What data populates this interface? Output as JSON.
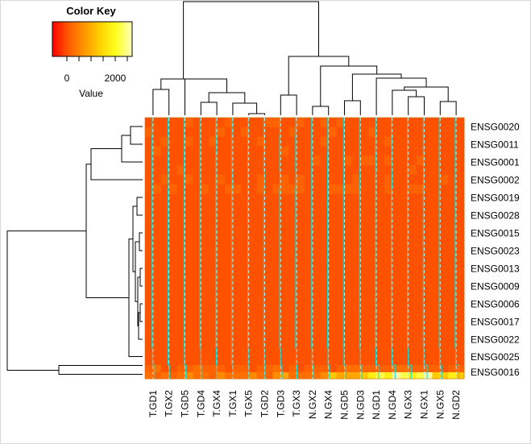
{
  "chart_data": {
    "type": "heatmap",
    "color_key": {
      "title": "Color Key",
      "xlabel": "Value",
      "tick_labels": [
        "0",
        "2000"
      ],
      "tick_values": [
        0,
        2000
      ],
      "range": [
        -600,
        2700
      ],
      "colors": [
        "#ff0000",
        "#ff5a00",
        "#ff9600",
        "#ffd200",
        "#ffff20",
        "#ffffc0"
      ]
    },
    "columns": [
      "T.GD1",
      "T.GX2",
      "T.GD5",
      "T.GD4",
      "T.GX4",
      "T.GX1",
      "T.GX5",
      "T.GD2",
      "T.GD3",
      "T.GX3",
      "N.GX2",
      "N.GX4",
      "N.GD5",
      "N.GD3",
      "N.GD1",
      "N.GD4",
      "N.GX3",
      "N.GX1",
      "N.GX5",
      "N.GD2"
    ],
    "rows": [
      "ENSG0020",
      "ENSG0011",
      "ENSG0001",
      "ENSG0002",
      "ENSG0019",
      "ENSG0028",
      "ENSG0015",
      "ENSG0023",
      "ENSG0013",
      "ENSG0009",
      "ENSG0006",
      "ENSG0017",
      "ENSG0022",
      "ENSG0025",
      "ENSG0016"
    ],
    "value_levels": [
      0,
      150,
      300,
      600,
      900,
      1300,
      1800,
      2200,
      2600
    ],
    "level_grid": [
      [
        0,
        0,
        0,
        0,
        0,
        1,
        0,
        0,
        0,
        0,
        1,
        0,
        0,
        0,
        0,
        1,
        1,
        0,
        0,
        1,
        0,
        0,
        1,
        0,
        1,
        0,
        0,
        0,
        0,
        0,
        0,
        0,
        0,
        0,
        0,
        0,
        0,
        0,
        0,
        0
      ],
      [
        1,
        0,
        0,
        0,
        0,
        0,
        0,
        0,
        0,
        1,
        0,
        0,
        1,
        0,
        0,
        0,
        0,
        0,
        1,
        0,
        0,
        0,
        0,
        1,
        0,
        0,
        0,
        0,
        1,
        0,
        0,
        0,
        0,
        0,
        0,
        0,
        0,
        0,
        0,
        0
      ],
      [
        0,
        0,
        1,
        0,
        0,
        1,
        0,
        0,
        1,
        0,
        0,
        0,
        0,
        0,
        1,
        0,
        0,
        0,
        0,
        0,
        0,
        0,
        1,
        0,
        0,
        0,
        0,
        0,
        0,
        0,
        1,
        0,
        0,
        0,
        0,
        0,
        0,
        0,
        0,
        0
      ],
      [
        0,
        1,
        0,
        0,
        0,
        0,
        0,
        0,
        0,
        0,
        0,
        0,
        0,
        0,
        0,
        0,
        0,
        1,
        0,
        0,
        0,
        0,
        0,
        0,
        0,
        0,
        0,
        0,
        0,
        0,
        0,
        0,
        0,
        0,
        0,
        0,
        0,
        0,
        0,
        0
      ],
      [
        0,
        0,
        0,
        0,
        0,
        0,
        0,
        0,
        0,
        0,
        0,
        0,
        0,
        0,
        0,
        0,
        0,
        0,
        0,
        0,
        0,
        1,
        0,
        0,
        0,
        1,
        0,
        1,
        1,
        0,
        1,
        0,
        0,
        0,
        1,
        0,
        0,
        0,
        0,
        0
      ],
      [
        0,
        0,
        0,
        0,
        1,
        0,
        0,
        0,
        0,
        0,
        0,
        0,
        0,
        0,
        0,
        0,
        0,
        0,
        0,
        0,
        0,
        0,
        0,
        0,
        0,
        0,
        0,
        0,
        0,
        0,
        0,
        0,
        0,
        1,
        0,
        0,
        0,
        0,
        0,
        0
      ],
      [
        0,
        0,
        1,
        0,
        0,
        1,
        0,
        0,
        0,
        1,
        0,
        0,
        0,
        0,
        1,
        0,
        0,
        1,
        0,
        1,
        0,
        0,
        0,
        0,
        0,
        0,
        1,
        0,
        0,
        0,
        1,
        0,
        0,
        0,
        0,
        0,
        0,
        1,
        0,
        0
      ],
      [
        0,
        1,
        0,
        1,
        0,
        0,
        0,
        1,
        0,
        0,
        1,
        1,
        0,
        0,
        1,
        0,
        1,
        1,
        1,
        1,
        0,
        0,
        0,
        1,
        1,
        1,
        1,
        0,
        0,
        0,
        1,
        0,
        0,
        1,
        1,
        0,
        0,
        0,
        0,
        0
      ],
      [
        0,
        0,
        0,
        0,
        0,
        0,
        0,
        0,
        0,
        0,
        0,
        0,
        0,
        0,
        0,
        0,
        0,
        0,
        0,
        0,
        0,
        0,
        0,
        0,
        0,
        0,
        0,
        0,
        0,
        0,
        0,
        0,
        0,
        0,
        0,
        0,
        0,
        0,
        0,
        0
      ],
      [
        0,
        0,
        0,
        0,
        0,
        0,
        0,
        0,
        0,
        0,
        0,
        0,
        0,
        0,
        0,
        0,
        0,
        0,
        0,
        0,
        0,
        0,
        0,
        0,
        0,
        0,
        0,
        0,
        0,
        0,
        0,
        0,
        0,
        0,
        0,
        0,
        0,
        0,
        0,
        0
      ],
      [
        0,
        0,
        0,
        0,
        0,
        0,
        0,
        0,
        0,
        0,
        0,
        0,
        0,
        0,
        0,
        0,
        0,
        0,
        0,
        0,
        0,
        0,
        0,
        0,
        0,
        0,
        0,
        0,
        0,
        0,
        0,
        0,
        0,
        0,
        0,
        0,
        0,
        0,
        0,
        0
      ],
      [
        0,
        0,
        0,
        0,
        0,
        0,
        0,
        0,
        0,
        0,
        0,
        0,
        0,
        0,
        0,
        0,
        0,
        0,
        0,
        0,
        0,
        0,
        0,
        0,
        0,
        0,
        0,
        0,
        0,
        0,
        0,
        0,
        0,
        0,
        0,
        0,
        0,
        0,
        0,
        0
      ],
      [
        0,
        0,
        0,
        0,
        0,
        0,
        0,
        0,
        0,
        0,
        0,
        0,
        0,
        0,
        0,
        0,
        0,
        0,
        0,
        0,
        0,
        0,
        0,
        0,
        0,
        0,
        0,
        0,
        0,
        0,
        0,
        0,
        0,
        0,
        0,
        0,
        0,
        0,
        0,
        0
      ],
      [
        0,
        0,
        0,
        0,
        0,
        0,
        0,
        0,
        0,
        0,
        0,
        0,
        0,
        0,
        0,
        0,
        0,
        0,
        0,
        0,
        0,
        0,
        0,
        0,
        0,
        0,
        0,
        0,
        0,
        0,
        0,
        0,
        0,
        0,
        0,
        0,
        0,
        0,
        0,
        0
      ],
      [
        0,
        0,
        0,
        0,
        0,
        0,
        0,
        0,
        0,
        0,
        0,
        0,
        0,
        0,
        0,
        0,
        0,
        0,
        0,
        0,
        0,
        0,
        0,
        0,
        0,
        0,
        0,
        0,
        0,
        0,
        0,
        0,
        0,
        0,
        0,
        0,
        0,
        0,
        0,
        0
      ],
      [
        0,
        0,
        0,
        0,
        0,
        0,
        0,
        0,
        0,
        0,
        0,
        0,
        0,
        0,
        0,
        0,
        0,
        0,
        0,
        0,
        0,
        0,
        0,
        0,
        0,
        0,
        0,
        0,
        0,
        0,
        0,
        0,
        0,
        0,
        0,
        0,
        0,
        0,
        0,
        0
      ],
      [
        0,
        0,
        0,
        0,
        0,
        0,
        0,
        0,
        0,
        0,
        0,
        0,
        0,
        0,
        0,
        0,
        0,
        0,
        0,
        0,
        0,
        0,
        0,
        0,
        0,
        0,
        0,
        0,
        0,
        0,
        0,
        0,
        0,
        0,
        0,
        0,
        0,
        0,
        0,
        0
      ],
      [
        0,
        0,
        0,
        0,
        0,
        0,
        0,
        0,
        0,
        0,
        0,
        0,
        0,
        0,
        0,
        0,
        0,
        0,
        0,
        0,
        0,
        0,
        0,
        0,
        0,
        0,
        0,
        0,
        0,
        0,
        0,
        0,
        0,
        0,
        0,
        0,
        0,
        0,
        0,
        0
      ],
      [
        0,
        0,
        0,
        0,
        0,
        0,
        0,
        0,
        0,
        0,
        0,
        0,
        0,
        0,
        0,
        0,
        0,
        0,
        0,
        0,
        0,
        0,
        0,
        0,
        0,
        0,
        0,
        0,
        0,
        0,
        0,
        0,
        0,
        0,
        0,
        0,
        0,
        0,
        0,
        0
      ],
      [
        0,
        0,
        0,
        0,
        0,
        0,
        0,
        0,
        0,
        0,
        0,
        0,
        0,
        0,
        0,
        0,
        0,
        0,
        0,
        0,
        0,
        0,
        0,
        0,
        0,
        0,
        0,
        0,
        0,
        0,
        0,
        0,
        0,
        0,
        0,
        0,
        0,
        0,
        0,
        0
      ],
      [
        0,
        0,
        0,
        0,
        0,
        0,
        0,
        0,
        0,
        0,
        0,
        0,
        0,
        0,
        0,
        0,
        0,
        0,
        0,
        0,
        0,
        0,
        0,
        0,
        0,
        0,
        0,
        0,
        0,
        0,
        0,
        0,
        0,
        0,
        0,
        0,
        0,
        0,
        0,
        0
      ],
      [
        0,
        0,
        0,
        0,
        0,
        0,
        0,
        0,
        0,
        0,
        0,
        0,
        0,
        0,
        0,
        0,
        0,
        0,
        0,
        0,
        0,
        0,
        0,
        0,
        0,
        0,
        0,
        0,
        0,
        0,
        0,
        0,
        0,
        0,
        0,
        0,
        0,
        0,
        0,
        0
      ],
      [
        0,
        0,
        0,
        0,
        0,
        0,
        0,
        0,
        0,
        0,
        0,
        0,
        0,
        0,
        0,
        0,
        0,
        0,
        0,
        0,
        0,
        0,
        0,
        0,
        0,
        0,
        0,
        0,
        0,
        0,
        0,
        0,
        0,
        0,
        0,
        0,
        0,
        0,
        0,
        0
      ],
      [
        0,
        0,
        0,
        0,
        0,
        0,
        0,
        0,
        0,
        0,
        0,
        0,
        0,
        0,
        0,
        0,
        0,
        0,
        0,
        0,
        0,
        0,
        0,
        0,
        0,
        0,
        0,
        0,
        0,
        0,
        0,
        0,
        0,
        0,
        0,
        0,
        0,
        0,
        0,
        0
      ],
      [
        0,
        0,
        0,
        0,
        0,
        0,
        0,
        0,
        0,
        0,
        0,
        0,
        0,
        0,
        0,
        0,
        0,
        0,
        0,
        0,
        0,
        0,
        0,
        0,
        0,
        0,
        0,
        0,
        0,
        0,
        0,
        0,
        0,
        0,
        0,
        0,
        0,
        0,
        0,
        0
      ],
      [
        0,
        0,
        0,
        0,
        0,
        0,
        0,
        0,
        0,
        0,
        0,
        0,
        0,
        0,
        0,
        0,
        0,
        0,
        0,
        0,
        0,
        0,
        0,
        0,
        0,
        0,
        0,
        0,
        0,
        0,
        0,
        0,
        0,
        0,
        0,
        0,
        0,
        0,
        0,
        0
      ],
      [
        1,
        2,
        0,
        0,
        1,
        1,
        2,
        1,
        1,
        1,
        0,
        1,
        1,
        0,
        1,
        1,
        2,
        0,
        1,
        0,
        1,
        1,
        1,
        0,
        1,
        2,
        2,
        1,
        1,
        1,
        1,
        2,
        2,
        1,
        1,
        1,
        1,
        0,
        1,
        1
      ],
      [
        2,
        1,
        2,
        1,
        2,
        3,
        2,
        2,
        1,
        3,
        2,
        2,
        2,
        3,
        2,
        1,
        3,
        4,
        2,
        2,
        2,
        2,
        3,
        5,
        4,
        4,
        4,
        5,
        6,
        7,
        6,
        8,
        7,
        6,
        7,
        8,
        5,
        5,
        6,
        5
      ],
      [
        5,
        6,
        3,
        3,
        4,
        3,
        3,
        3,
        3,
        4,
        3,
        2,
        3,
        2,
        3,
        2,
        4,
        3,
        3,
        3,
        4,
        4,
        3,
        3,
        3,
        2,
        3,
        4,
        2,
        4,
        3,
        2,
        2,
        3,
        2,
        3,
        2,
        4,
        3,
        2
      ]
    ]
  }
}
